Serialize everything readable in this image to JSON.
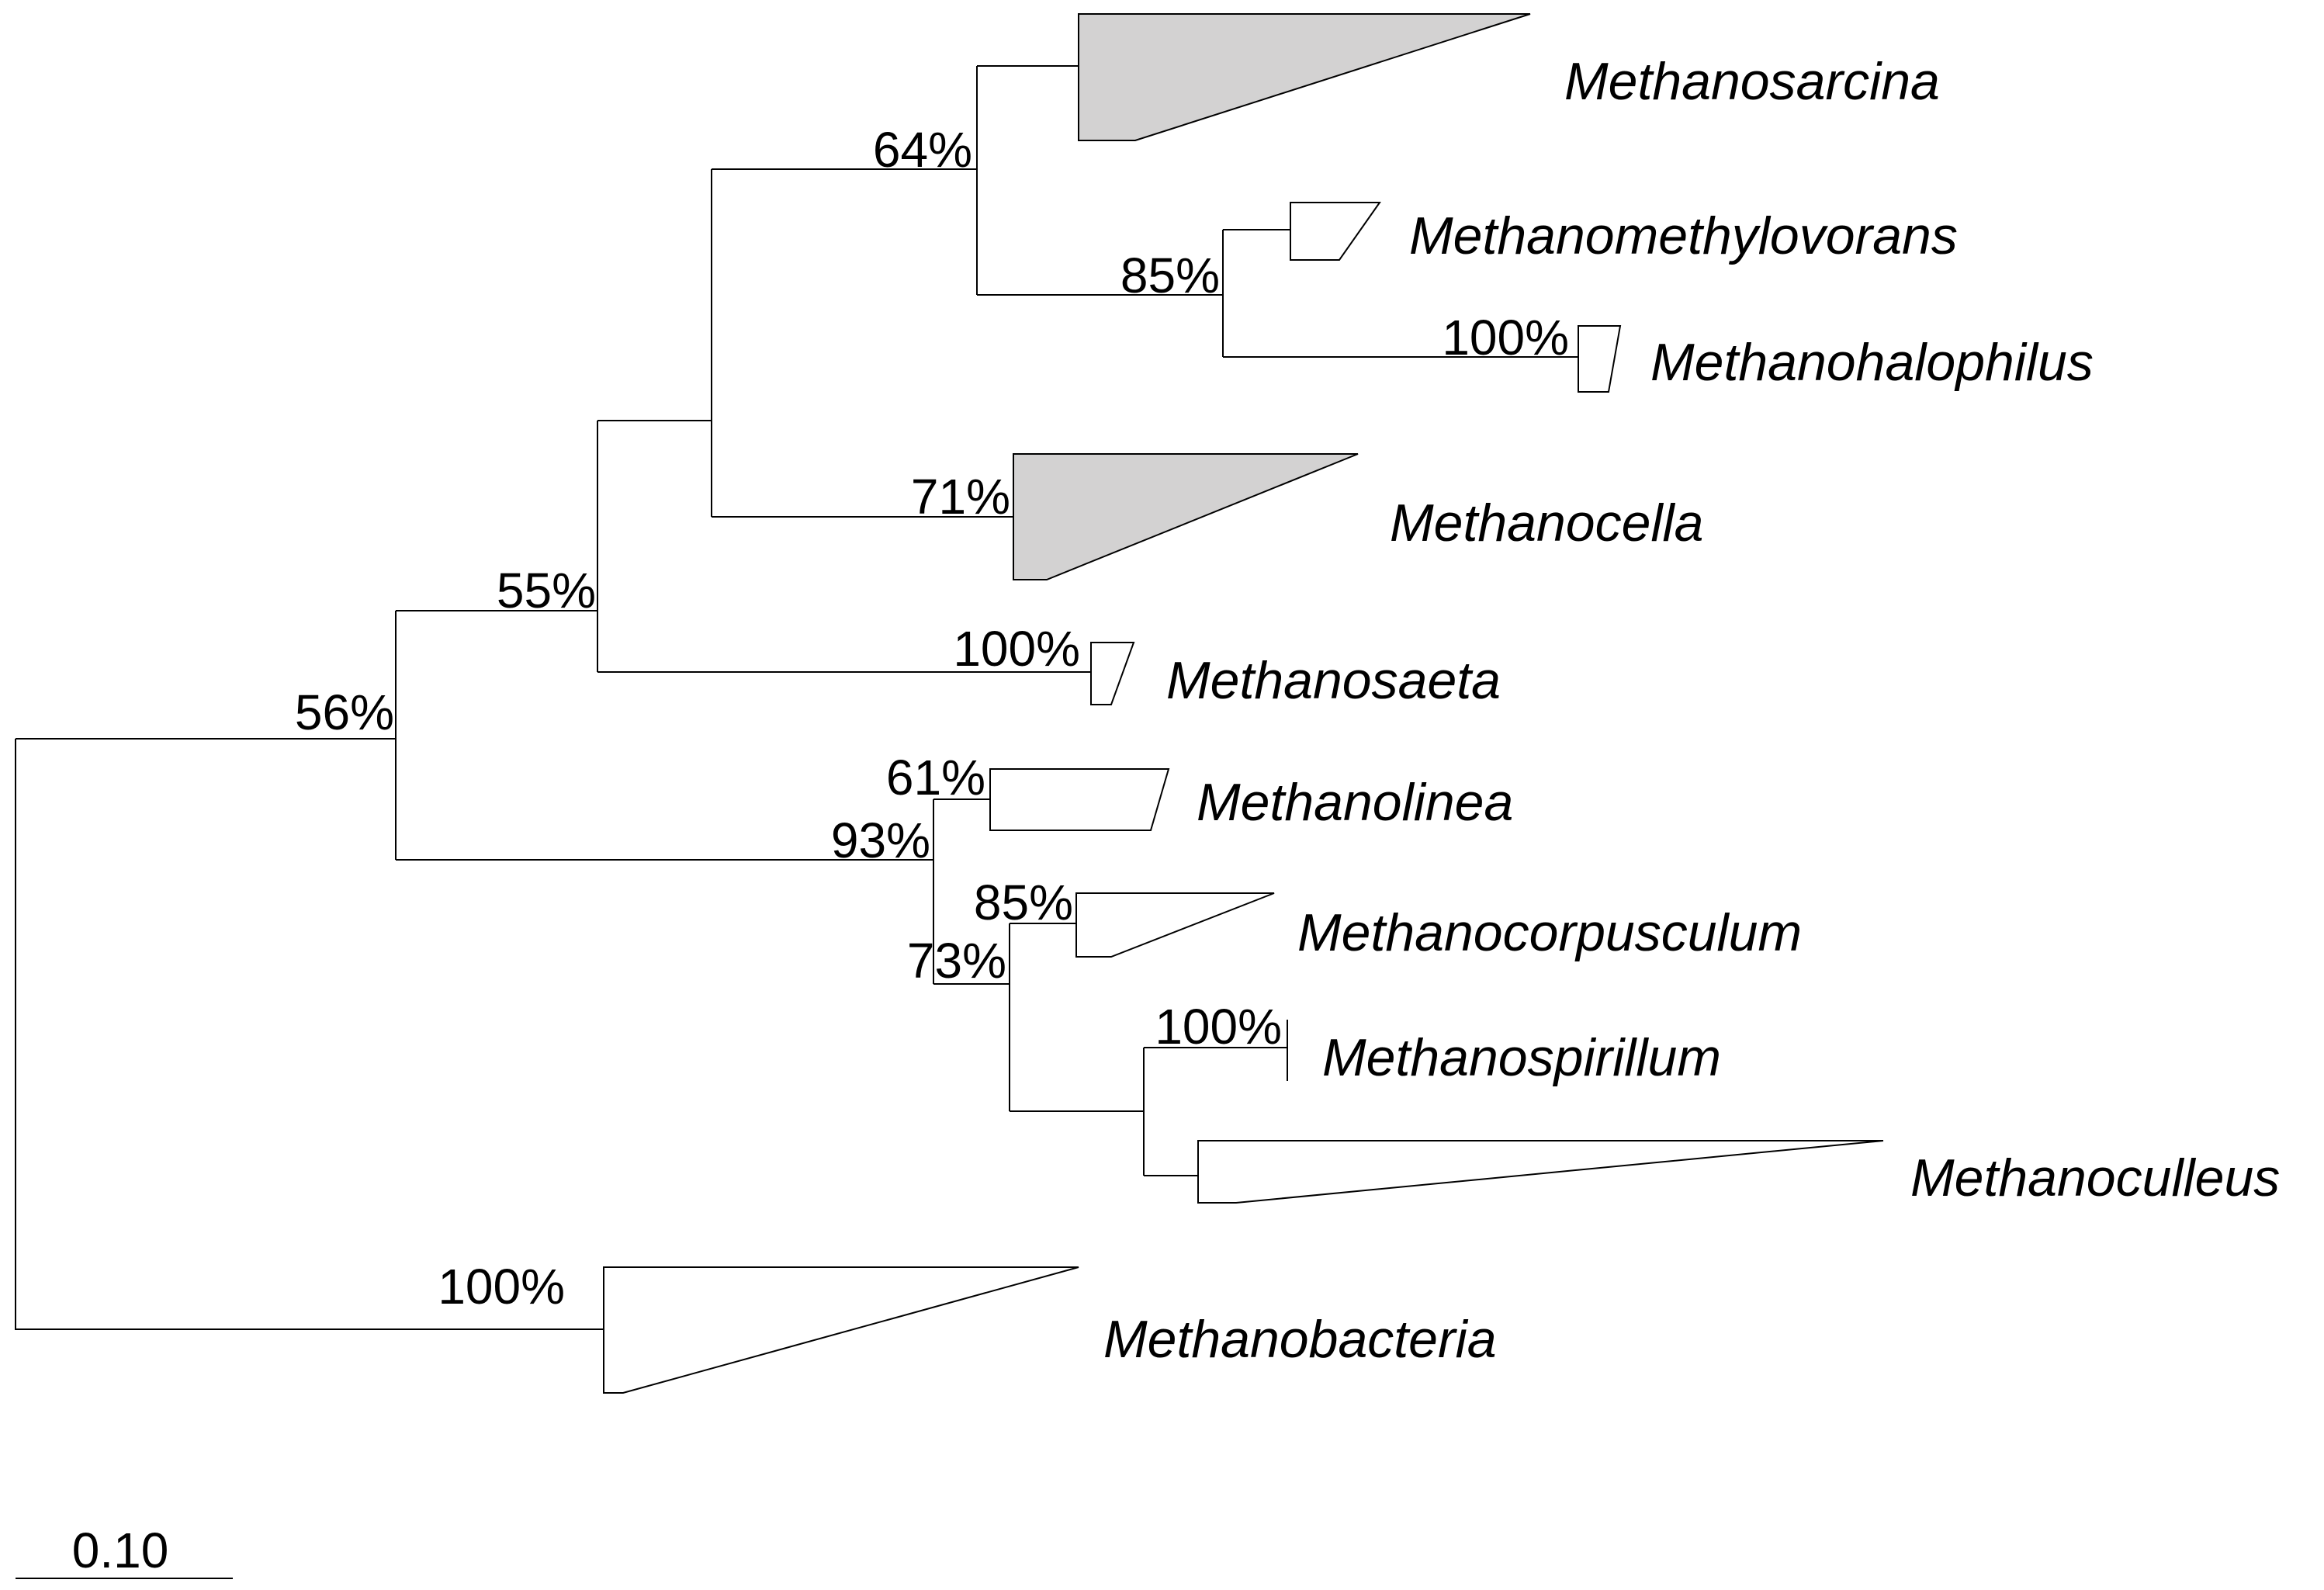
{
  "tree": {
    "colors": {
      "line": "#000000",
      "clade_fill_shaded": "#d3d2d2",
      "clade_fill_plain": "#ffffff"
    },
    "scale_bar": {
      "label": "0.10"
    },
    "support_values": {
      "root": "56%",
      "node_55": "55%",
      "node_64": "64%",
      "node_85_methanomethylovorans": "85%",
      "node_100_methanohalophilus": "100%",
      "node_71_methanocella": "71%",
      "node_100_methanosaeta": "100%",
      "node_61_methanolinea": "61%",
      "node_93": "93%",
      "node_85_methanocorpusculum": "85%",
      "node_73": "73%",
      "node_100_methanospirillum": "100%",
      "node_100_methanobacteria": "100%"
    },
    "taxa": {
      "methanosarcina": {
        "label": "Methanosarcina",
        "shaded": true
      },
      "methanomethylovorans": {
        "label": "Methanomethylovorans",
        "shaded": false
      },
      "methanohalophilus": {
        "label": "Methanohalophilus",
        "shaded": false
      },
      "methanocella": {
        "label": "Methanocella",
        "shaded": true
      },
      "methanosaeta": {
        "label": "Methanosaeta",
        "shaded": false
      },
      "methanolinea": {
        "label": "Methanolinea",
        "shaded": false
      },
      "methanocorpusculum": {
        "label": "Methanocorpusculum",
        "shaded": false
      },
      "methanospirillum": {
        "label": "Methanospirillum",
        "shaded": false
      },
      "methanoculleus": {
        "label": "Methanoculleus",
        "shaded": false
      },
      "methanobacteria": {
        "label": "Methanobacteria",
        "shaded": false
      }
    }
  }
}
